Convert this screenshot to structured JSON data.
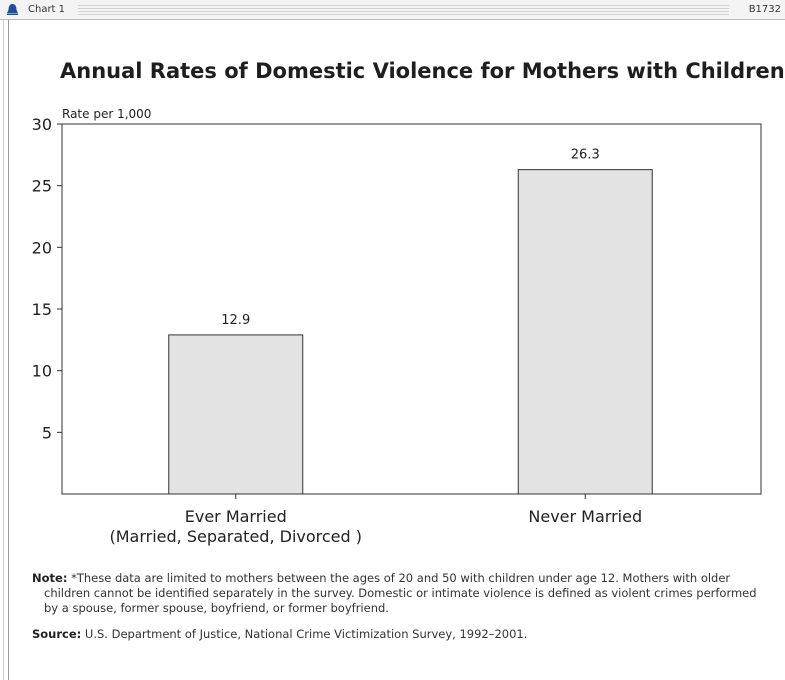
{
  "window": {
    "title": "Chart 1",
    "doc_id": "B1732",
    "icon": "bell-icon"
  },
  "chart_data": {
    "type": "bar",
    "title": "Annual Rates of Domestic Violence for Mothers with Children",
    "title_mark": "*",
    "ylabel": "Rate per 1,000",
    "xlabel": "",
    "ylim": [
      0,
      30
    ],
    "yticks": [
      5,
      10,
      15,
      20,
      25,
      30
    ],
    "categories": [
      [
        "Ever Married",
        "(Married, Separated, Divorced )"
      ],
      [
        "Never Married"
      ]
    ],
    "values": [
      12.9,
      26.3
    ],
    "value_labels": [
      "12.9",
      "26.3"
    ],
    "bar_color": "#e3e3e3",
    "bar_stroke": "#333333",
    "grid": false,
    "legend": "none"
  },
  "note": {
    "label": "Note:",
    "text": " *These data are limited to mothers between the ages of 20 and 50 with children under age 12. Mothers with older children cannot be identified separately in the survey. Domestic or intimate violence is defined as violent crimes performed by a spouse, former spouse, boyfriend, or former boyfriend."
  },
  "source": {
    "label": "Source:",
    "text": " U.S. Department of Justice, National Crime Victimization Survey, 1992–2001."
  }
}
